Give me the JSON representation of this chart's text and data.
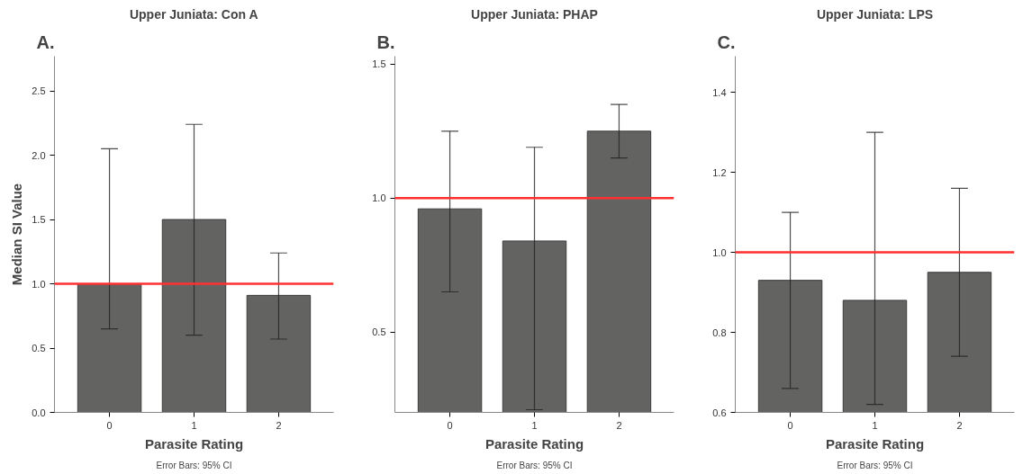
{
  "chart_data": [
    {
      "type": "bar",
      "title": "Upper Juniata: Con A",
      "xlabel": "Parasite Rating",
      "ylabel": "Median SI Value",
      "categories": [
        "0",
        "1",
        "2"
      ],
      "values": [
        1.0,
        1.5,
        0.91
      ],
      "errors": [
        [
          0.65,
          2.05
        ],
        [
          0.6,
          2.24
        ],
        [
          0.57,
          1.24
        ]
      ],
      "color": "#636462",
      "ylim": [
        0,
        2.77
      ],
      "yticks": [
        {
          "value": 0,
          "label": "0.0"
        },
        0.5,
        {
          "value": 1,
          "label": "1.0"
        },
        1.5,
        {
          "value": 2,
          "label": "2.0"
        },
        2.5
      ],
      "ref_lines": [
        {
          "axis": "y",
          "value": 1,
          "color": "#ff3030"
        }
      ],
      "grid": false,
      "annotations": [
        "A.",
        "Error Bars: 95% CI"
      ]
    },
    {
      "type": "bar",
      "title": "Upper Juniata: PHAP",
      "xlabel": "Parasite Rating",
      "categories": [
        "0",
        "1",
        "2"
      ],
      "values": [
        0.96,
        0.84,
        1.25
      ],
      "errors": [
        [
          0.65,
          1.25
        ],
        [
          0.21,
          1.19
        ],
        [
          1.15,
          1.35
        ]
      ],
      "color": "#636462",
      "ylim": [
        0.2,
        1.53
      ],
      "yticks": [
        0.5,
        {
          "value": 1,
          "label": "1.0"
        },
        1.5
      ],
      "ref_lines": [
        {
          "axis": "y",
          "value": 1,
          "color": "#ff3030"
        }
      ],
      "grid": false,
      "annotations": [
        "B.",
        "Error Bars: 95% CI"
      ]
    },
    {
      "type": "bar",
      "title": "Upper Juniata: LPS",
      "xlabel": "Parasite Rating",
      "categories": [
        "0",
        "1",
        "2"
      ],
      "values": [
        0.93,
        0.88,
        0.95
      ],
      "errors": [
        [
          0.66,
          1.1
        ],
        [
          0.62,
          1.3
        ],
        [
          0.74,
          1.16
        ]
      ],
      "color": "#636462",
      "ylim": [
        0.6,
        1.49
      ],
      "yticks": [
        0.6,
        0.8,
        {
          "value": 1,
          "label": "1.0"
        },
        1.2,
        1.4
      ],
      "ref_lines": [
        {
          "axis": "y",
          "value": 1,
          "color": "#ff3030"
        }
      ],
      "grid": false,
      "annotations": [
        "C.",
        "Error Bars: 95% CI"
      ]
    }
  ]
}
